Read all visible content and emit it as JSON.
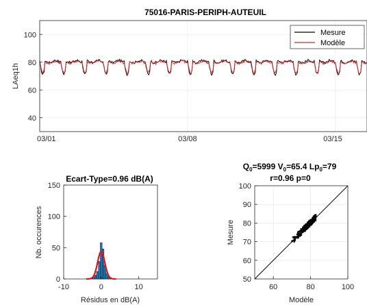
{
  "chart_data": [
    {
      "type": "line",
      "title": "75016-PARIS-PERIPH-AUTEUIL",
      "xlabel": "",
      "ylabel": "LAeq1h",
      "xlim": [
        "2014-03-01",
        "2014-03-16 12:00"
      ],
      "ylim": [
        30,
        110
      ],
      "x_ticks": [
        "03/01",
        "03/08",
        "03/15"
      ],
      "y_ticks": [
        "40",
        "60",
        "80",
        "100"
      ],
      "grid": true,
      "legend": "top-right",
      "colors": {
        "mesure": "#000000",
        "modele": "#d62728"
      },
      "series": [
        {
          "name": "Mesure",
          "description_note": "hourly measured LAeq, daily cycle ~79-82 dB(A) day, dips to ~70-72 at night",
          "day_level": 80.5,
          "night_min": 71,
          "start_day": "03/01",
          "days": 15.5
        },
        {
          "name": "Modèle",
          "day_level": 80,
          "night_min": 72,
          "start_day": "03/01",
          "days": 15.5
        }
      ]
    },
    {
      "type": "bar",
      "title": "Ecart-Type=0.96 dB(A)",
      "xlabel": "Résidus en dB(A)",
      "ylabel": "Nb. occurences",
      "xlim": [
        -10,
        15
      ],
      "ylim": [
        0,
        150
      ],
      "x_ticks": [
        "-10",
        "0",
        "10"
      ],
      "y_ticks": [
        "0",
        "50",
        "100",
        "150"
      ],
      "colors": {
        "bars": "#1f77b4",
        "fit": "#e8101a"
      },
      "bins_center": [
        -3,
        -2.5,
        -2,
        -1.5,
        -1,
        -0.5,
        0,
        0.5,
        1,
        1.5,
        2,
        2.5,
        3
      ],
      "counts": [
        1,
        2,
        3,
        6,
        12,
        28,
        58,
        48,
        22,
        9,
        4,
        2,
        1
      ],
      "fit": {
        "mean": 0,
        "std": 0.96,
        "peak": 44
      }
    },
    {
      "type": "scatter",
      "title_parts": {
        "Q": "Q",
        "Q_sub": "0",
        "Q_val": "=5999 ",
        "V": "V",
        "V_sub": "0",
        "V_val": "=65.4 ",
        "Lp": "Lp",
        "Lp_sub": "0",
        "Lp_val": "=79"
      },
      "subtitle": "r=0.96 p=0",
      "xlabel": "Modèle",
      "ylabel": "Mesure",
      "xlim": [
        50,
        100
      ],
      "ylim": [
        50,
        100
      ],
      "x_ticks": [
        "60",
        "80",
        "100"
      ],
      "y_ticks": [
        "50",
        "60",
        "70",
        "80",
        "90",
        "100"
      ],
      "grid": true,
      "colors": {
        "points": "#000000",
        "identity": "#000000"
      },
      "points_range": {
        "x": [
          70,
          83
        ],
        "y": [
          70,
          84
        ]
      }
    }
  ]
}
